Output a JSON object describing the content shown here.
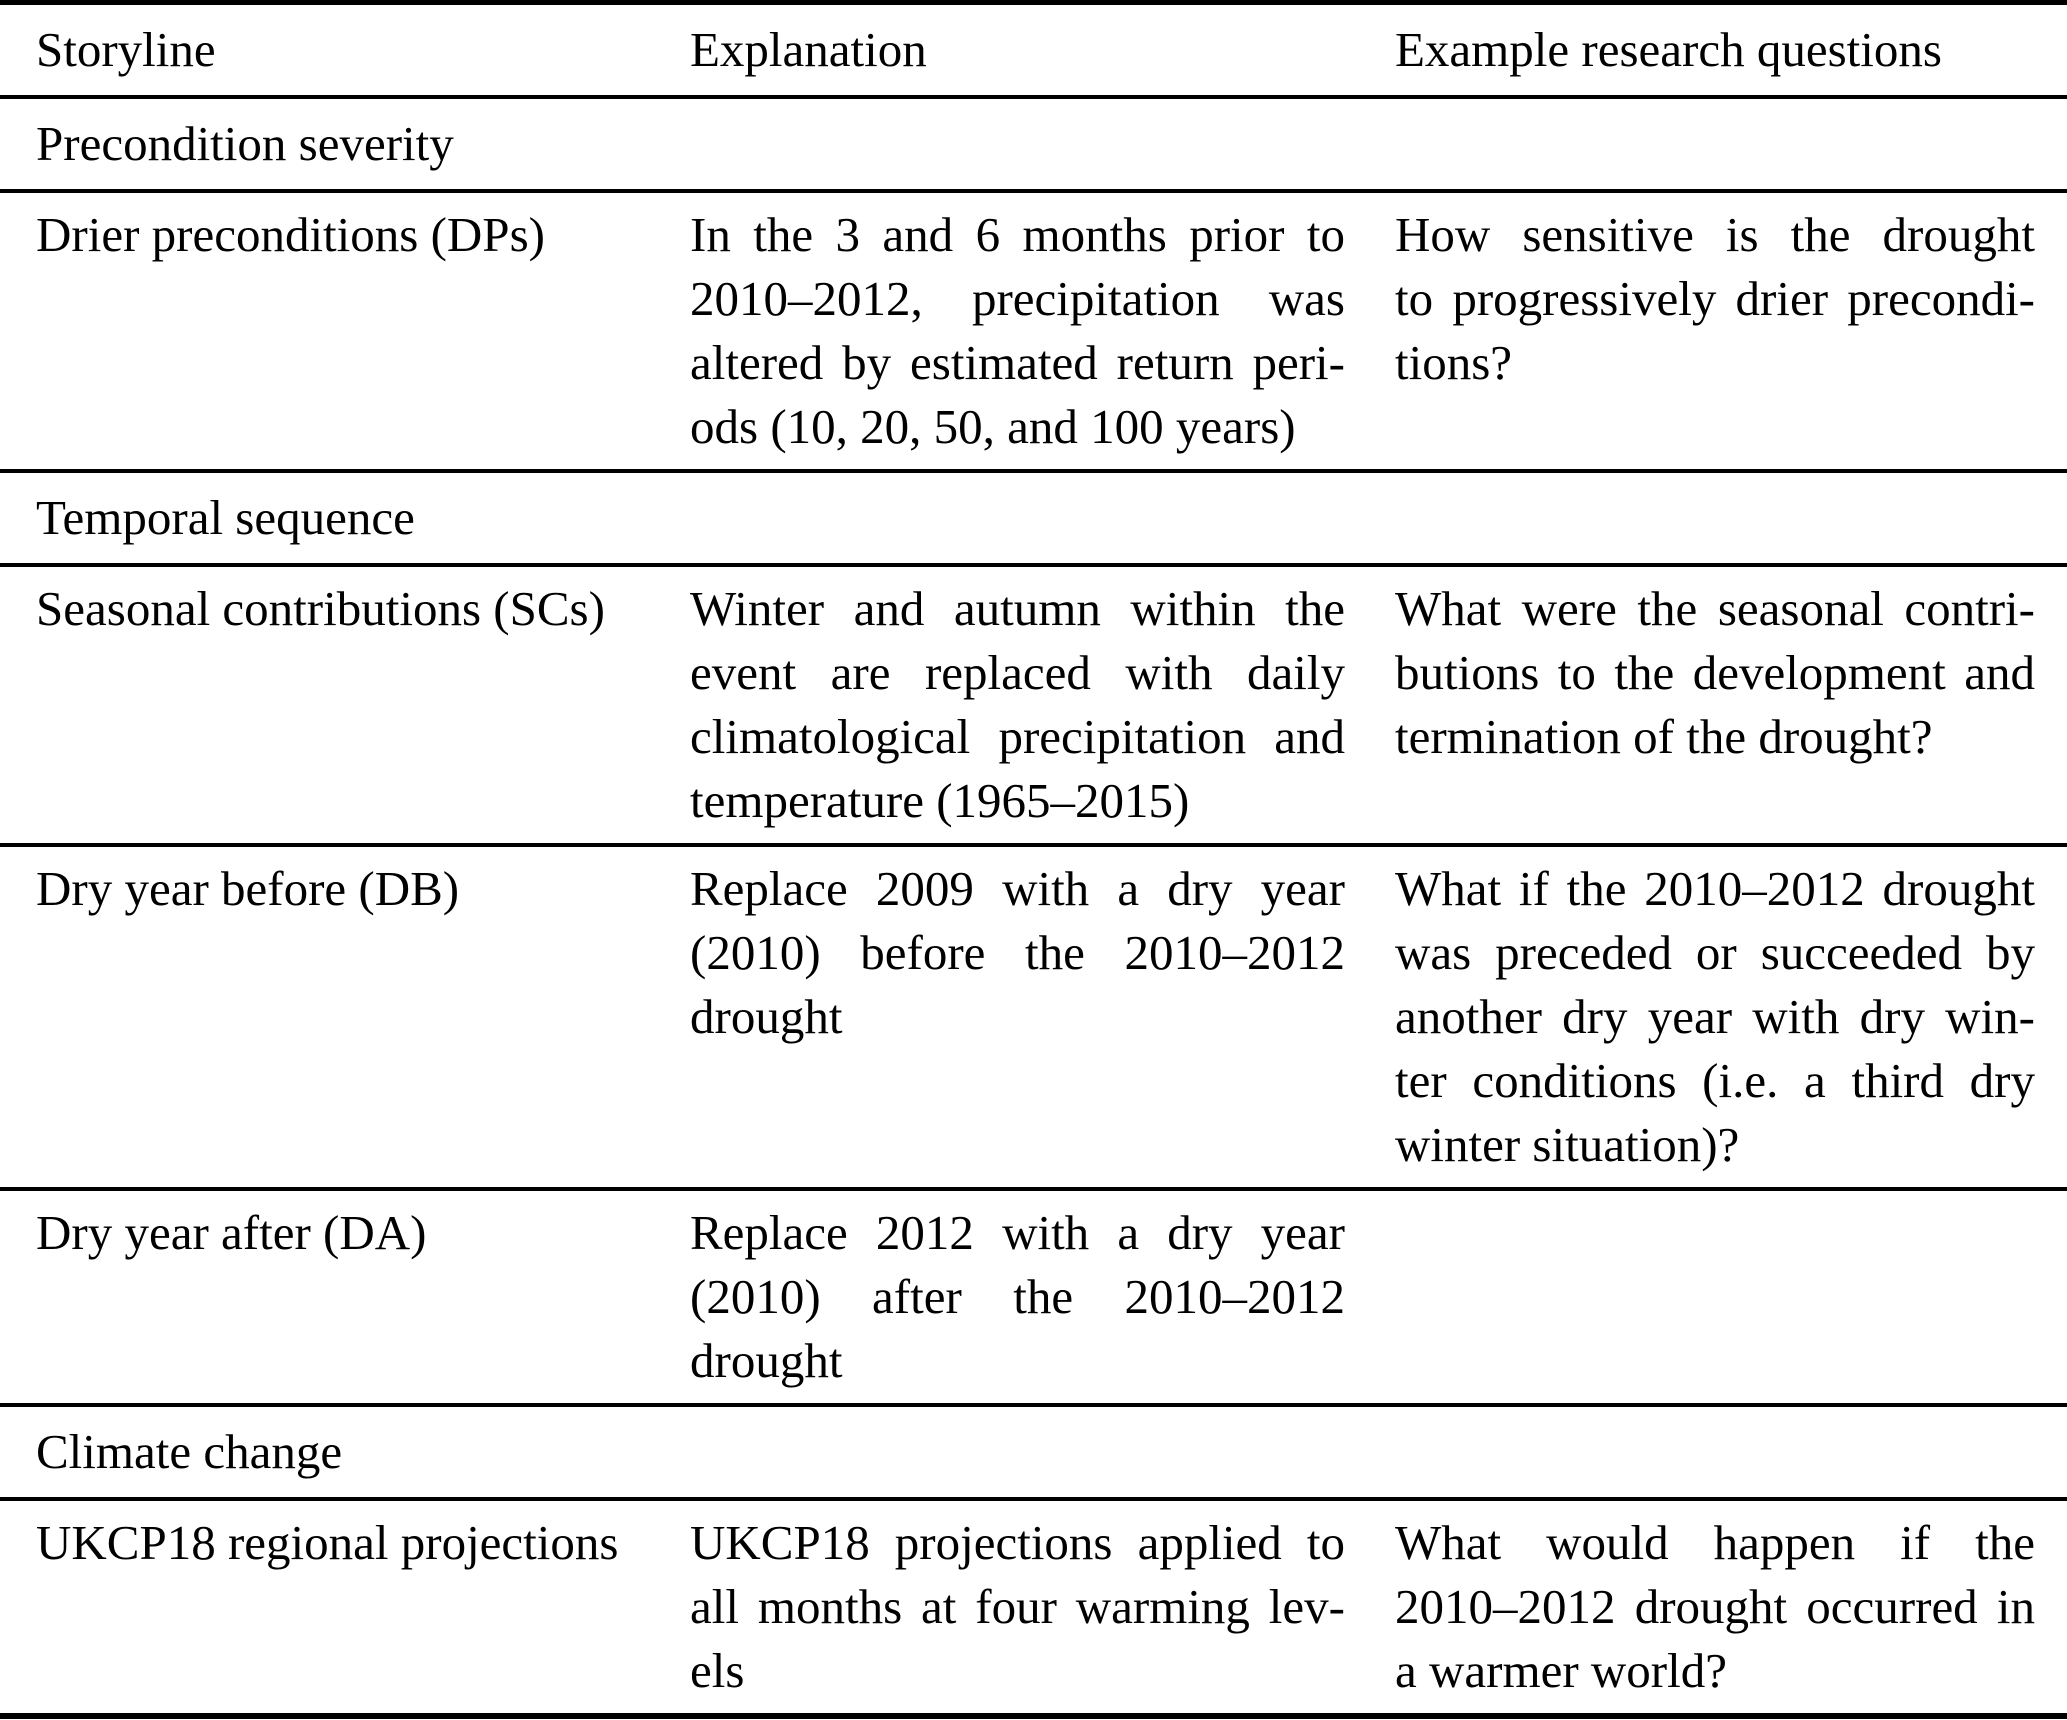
{
  "table": {
    "column_headers": [
      "Storyline",
      "Explanation",
      "Example research questions"
    ],
    "sections": [
      {
        "title": "Precondition severity",
        "rows": [
          {
            "storyline": "Drier preconditions (DPs)",
            "explanation_lines": [
              "In the 3 and 6 months prior to",
              "2010–2012, precipitation was",
              "altered by estimated return peri-",
              "ods (10, 20, 50, and 100 years)"
            ],
            "question_lines": [
              "How sensitive is the drought",
              "to progressively drier precondi-",
              "tions?"
            ]
          }
        ]
      },
      {
        "title": "Temporal sequence",
        "rows": [
          {
            "storyline": "Seasonal contributions (SCs)",
            "explanation_lines": [
              "Winter and autumn within the",
              "event are replaced with daily",
              "climatological precipitation and",
              "temperature (1965–2015)"
            ],
            "question_lines": [
              "What were the seasonal contri-",
              "butions to the development and",
              "termination of the drought?"
            ]
          },
          {
            "storyline": "Dry year before (DB)",
            "explanation_lines": [
              "Replace 2009 with a dry year",
              "(2010) before the 2010–2012",
              "drought"
            ],
            "question_lines": [
              "What if the 2010–2012 drought",
              "was preceded or succeeded by",
              "another dry year with dry win-",
              "ter conditions (i.e. a third dry",
              "winter situation)?"
            ]
          },
          {
            "storyline": "Dry year after (DA)",
            "explanation_lines": [
              "Replace 2012 with a dry year",
              "(2010) after the 2010–2012",
              "drought"
            ],
            "question_lines": []
          }
        ]
      },
      {
        "title": "Climate change",
        "rows": [
          {
            "storyline": "UKCP18 regional projections",
            "explanation_lines": [
              "UKCP18 projections applied to",
              "all months at four warming lev-",
              "els"
            ],
            "question_lines": [
              "What would happen if the",
              "2010–2012 drought occurred in",
              "a warmer world?"
            ]
          }
        ]
      }
    ]
  }
}
